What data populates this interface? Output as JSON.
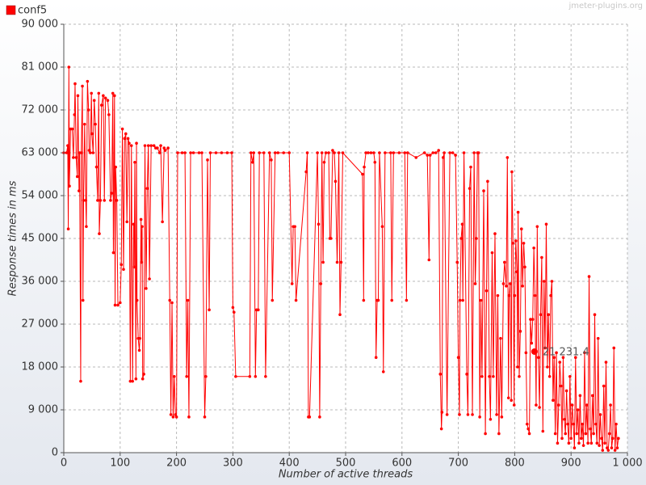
{
  "chart_data": {
    "type": "line",
    "xlabel": "Number of active threads",
    "ylabel": "Response times in ms",
    "watermark": "jmeter-plugins.org",
    "xlim": [
      0,
      1000
    ],
    "ylim": [
      0,
      90000
    ],
    "xticks": [
      0,
      100,
      200,
      300,
      400,
      500,
      600,
      700,
      800,
      900,
      {
        "value": 1000,
        "label": "1 000"
      }
    ],
    "yticks": [
      0,
      {
        "value": 9000,
        "label": "9 000"
      },
      {
        "value": 18000,
        "label": "18 000"
      },
      {
        "value": 27000,
        "label": "27 000"
      },
      {
        "value": 36000,
        "label": "36 000"
      },
      {
        "value": 45000,
        "label": "45 000"
      },
      {
        "value": 54000,
        "label": "54 000"
      },
      {
        "value": 63000,
        "label": "63 000"
      },
      {
        "value": 72000,
        "label": "72 000"
      },
      {
        "value": 81000,
        "label": "81 000"
      },
      {
        "value": 90000,
        "label": "90 000"
      }
    ],
    "grid": true,
    "legend": "top-left",
    "annotation": {
      "x": 835,
      "y": 21231.4,
      "label": "21 231.4"
    },
    "x": [
      0,
      5,
      7,
      8,
      9,
      10,
      12,
      15,
      17,
      19,
      20,
      22,
      24,
      25,
      27,
      28,
      30,
      31,
      33,
      34,
      35,
      37,
      39,
      40,
      42,
      44,
      45,
      47,
      49,
      50,
      52,
      54,
      56,
      58,
      60,
      62,
      63,
      65,
      67,
      70,
      72,
      74,
      78,
      80,
      83,
      85,
      87,
      88,
      90,
      91,
      92,
      94,
      96,
      100,
      102,
      104,
      106,
      108,
      110,
      112,
      114,
      116,
      118,
      120,
      122,
      124,
      125,
      126,
      128,
      129,
      130,
      132,
      134,
      135,
      137,
      138,
      139,
      140,
      142,
      144,
      146,
      148,
      150,
      152,
      155,
      160,
      163,
      166,
      170,
      172,
      175,
      178,
      180,
      185,
      188,
      190,
      192,
      194,
      196,
      198,
      200,
      202,
      210,
      215,
      218,
      220,
      222,
      225,
      230,
      240,
      245,
      250,
      252,
      255,
      258,
      260,
      270,
      280,
      290,
      298,
      300,
      302,
      305,
      330,
      332,
      335,
      337,
      340,
      342,
      345,
      347,
      355,
      358,
      365,
      368,
      370,
      375,
      380,
      390,
      400,
      405,
      407,
      410,
      412,
      430,
      432,
      434,
      436,
      450,
      452,
      454,
      456,
      458,
      460,
      462,
      465,
      470,
      472,
      474,
      477,
      480,
      482,
      485,
      488,
      490,
      492,
      495,
      530,
      532,
      533,
      536,
      540,
      545,
      550,
      552,
      554,
      556,
      558,
      560,
      565,
      567,
      570,
      580,
      582,
      585,
      595,
      605,
      608,
      610,
      625,
      640,
      645,
      648,
      650,
      655,
      660,
      665,
      668,
      670,
      671,
      673,
      675,
      680,
      685,
      690,
      695,
      698,
      700,
      702,
      703,
      705,
      707,
      708,
      710,
      715,
      717,
      720,
      722,
      725,
      728,
      730,
      732,
      734,
      736,
      738,
      740,
      742,
      745,
      748,
      750,
      752,
      755,
      757,
      760,
      762,
      765,
      768,
      770,
      772,
      775,
      777,
      780,
      782,
      785,
      787,
      789,
      790,
      792,
      794,
      795,
      797,
      799,
      800,
      802,
      804,
      805,
      806,
      808,
      810,
      812,
      814,
      816,
      818,
      820,
      822,
      824,
      826,
      828,
      830,
      832,
      834,
      836,
      838,
      840,
      842,
      844,
      846,
      848,
      850,
      852,
      854,
      856,
      858,
      860,
      862,
      864,
      866,
      868,
      870,
      872,
      874,
      876,
      878,
      880,
      882,
      884,
      886,
      888,
      890,
      892,
      894,
      896,
      898,
      900,
      902,
      904,
      906,
      908,
      910,
      912,
      914,
      916,
      918,
      920,
      922,
      924,
      926,
      928,
      930,
      932,
      934,
      936,
      938,
      940,
      942,
      944,
      946,
      948,
      950,
      952,
      954,
      956,
      958,
      960,
      962,
      964,
      966,
      968,
      970,
      972,
      974,
      976,
      978,
      980,
      982,
      984
    ],
    "series": [
      {
        "name": "conf5",
        "color": "#ff0000",
        "values": [
          63000,
          63000,
          64500,
          47000,
          81000,
          56000,
          68000,
          68000,
          62000,
          71000,
          77500,
          62000,
          58000,
          75000,
          55000,
          63000,
          15000,
          63000,
          77000,
          32000,
          53000,
          69000,
          53000,
          47500,
          78000,
          72000,
          63500,
          63000,
          75500,
          67000,
          63000,
          74000,
          69000,
          60000,
          53000,
          75500,
          46000,
          53000,
          73000,
          75000,
          53000,
          74500,
          74000,
          71000,
          53000,
          54500,
          75500,
          42000,
          75000,
          31000,
          60000,
          53000,
          31000,
          31500,
          39500,
          68000,
          38500,
          66000,
          67000,
          48500,
          66000,
          65000,
          15000,
          64500,
          15000,
          48000,
          39000,
          61000,
          15500,
          65000,
          32000,
          24000,
          21500,
          24000,
          49000,
          40000,
          47500,
          15500,
          16500,
          64500,
          34500,
          55500,
          64500,
          36500,
          64500,
          64500,
          64000,
          64000,
          63000,
          64500,
          48500,
          64000,
          63500,
          64000,
          32000,
          8000,
          31500,
          7500,
          16000,
          8000,
          7500,
          63000,
          63000,
          63000,
          16000,
          32000,
          7500,
          63000,
          63000,
          63000,
          63000,
          7500,
          16000,
          61500,
          30000,
          63000,
          63000,
          63000,
          63000,
          63000,
          30500,
          29500,
          16000,
          16000,
          63000,
          61000,
          63000,
          16000,
          30000,
          30000,
          63000,
          63000,
          16000,
          63000,
          61500,
          32000,
          63000,
          63000,
          63000,
          63000,
          35500,
          47500,
          47500,
          32000,
          59000,
          63000,
          7500,
          7500,
          63000,
          48000,
          7500,
          35500,
          63000,
          40000,
          61000,
          63000,
          63000,
          45000,
          45000,
          63500,
          63000,
          57000,
          40000,
          63000,
          29000,
          40000,
          63000,
          58500,
          32000,
          60000,
          63000,
          63000,
          63000,
          63000,
          61000,
          20000,
          32000,
          32000,
          63000,
          47500,
          17000,
          63000,
          63000,
          32000,
          63000,
          63000,
          63000,
          32000,
          63000,
          62000,
          63000,
          62500,
          40500,
          62500,
          63000,
          63000,
          63500,
          16500,
          5000,
          8500,
          62000,
          63000,
          8000,
          63000,
          63000,
          62500,
          40000,
          20000,
          8000,
          32000,
          45000,
          48000,
          32000,
          63000,
          16500,
          8000,
          55500,
          60000,
          8000,
          63000,
          35500,
          45000,
          63000,
          63000,
          7500,
          32000,
          16000,
          55000,
          4000,
          34000,
          57000,
          16000,
          7000,
          42000,
          16000,
          46000,
          8000,
          33000,
          4000,
          24000,
          7500,
          35500,
          40000,
          35000,
          62000,
          11500,
          33000,
          35500,
          11000,
          59000,
          44000,
          10000,
          33000,
          44500,
          38000,
          18000,
          50500,
          16000,
          25500,
          47000,
          35000,
          44000,
          39000,
          21000,
          6000,
          5000,
          4000,
          28000,
          23000,
          28000,
          43000,
          33000,
          10000,
          47500,
          20000,
          9500,
          29000,
          41000,
          4500,
          36000,
          22000,
          48000,
          18000,
          29000,
          16000,
          33000,
          36000,
          11000,
          20000,
          4000,
          21000,
          2000,
          10000,
          19000,
          14000,
          3000,
          20000,
          7000,
          4000,
          13000,
          6000,
          2000,
          16000,
          3000,
          10000,
          6000,
          1000,
          20000,
          4000,
          9000,
          2000,
          12000,
          3000,
          6000,
          1500,
          21000,
          4000,
          10000,
          2000,
          37000,
          5000,
          2000,
          12000,
          4000,
          29000,
          6000,
          2000,
          24000,
          1500,
          8000,
          3000,
          500,
          14000,
          2000,
          19000,
          1000,
          500,
          4000,
          10000,
          1000,
          3000,
          22000,
          500,
          6000,
          1000,
          3000
        ]
      }
    ]
  }
}
